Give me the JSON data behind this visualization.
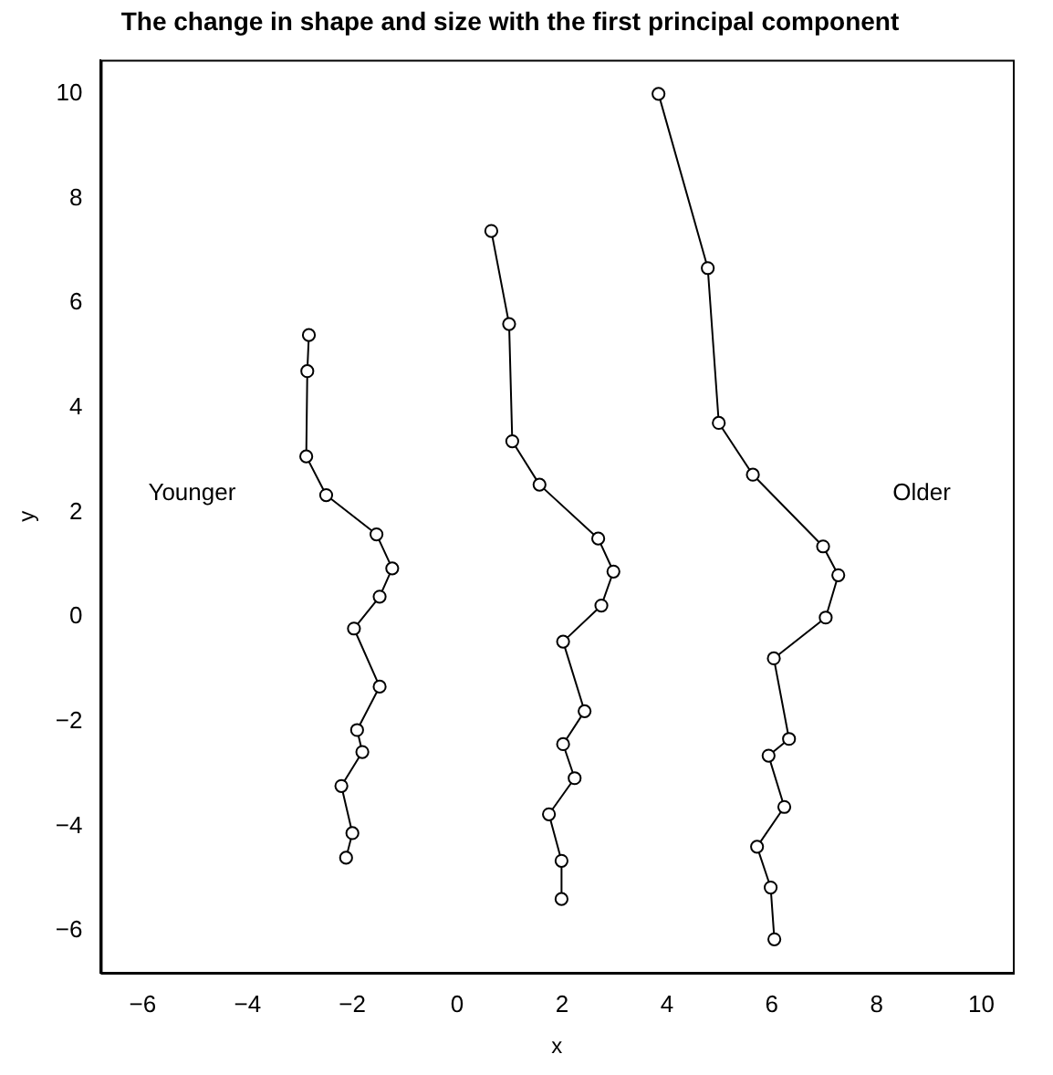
{
  "chart_data": {
    "type": "line",
    "title": "The change in shape and size with the first principal component",
    "xlabel": "x",
    "ylabel": "y",
    "xlim": [
      -6.8,
      10.6
    ],
    "ylim": [
      -6.8,
      10.65
    ],
    "xticks": [
      -6,
      -4,
      -2,
      0,
      2,
      4,
      6,
      8,
      10
    ],
    "yticks": [
      -6,
      -4,
      -2,
      0,
      2,
      4,
      6,
      8,
      10
    ],
    "grid": false,
    "legend": false,
    "marker": "circle",
    "line_style": "solid",
    "annotations": [
      "Younger",
      "Older"
    ],
    "series": [
      {
        "color": "#000000",
        "x": [
          -2.83,
          -2.86,
          -2.88,
          -2.5,
          -1.54,
          -1.24,
          -1.48,
          -1.97,
          -1.48,
          -1.91,
          -1.81,
          -2.21,
          -2.0,
          -2.12
        ],
        "values": [
          5.39,
          4.7,
          3.07,
          2.33,
          1.58,
          0.93,
          0.39,
          -0.22,
          -1.33,
          -2.16,
          -2.58,
          -3.23,
          -4.13,
          -4.6
        ]
      },
      {
        "color": "#000000",
        "x": [
          0.65,
          0.99,
          1.05,
          1.57,
          2.69,
          2.98,
          2.75,
          2.02,
          2.43,
          2.02,
          2.24,
          1.75,
          1.99,
          1.99
        ],
        "values": [
          7.38,
          5.6,
          3.36,
          2.53,
          1.5,
          0.87,
          0.22,
          -0.47,
          -1.8,
          -2.43,
          -3.08,
          -3.77,
          -4.66,
          -5.39
        ]
      },
      {
        "color": "#000000",
        "x": [
          3.84,
          4.78,
          4.99,
          5.64,
          6.98,
          7.27,
          7.03,
          6.04,
          6.33,
          5.94,
          6.24,
          5.72,
          5.98,
          6.05
        ],
        "values": [
          10.0,
          6.67,
          3.71,
          2.72,
          1.35,
          0.8,
          -0.01,
          -0.79,
          -2.33,
          -2.65,
          -3.63,
          -4.39,
          -5.17,
          -6.16
        ]
      }
    ]
  }
}
